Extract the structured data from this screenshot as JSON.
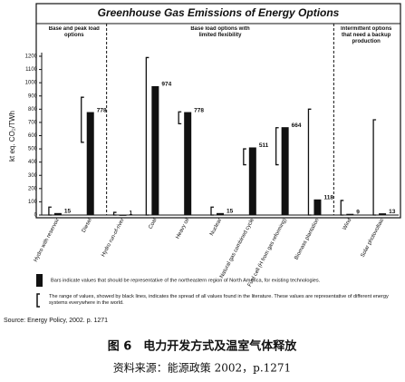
{
  "chart_data": {
    "type": "bar",
    "title": "Greenhouse Gas Emissions of Energy Options",
    "groups": [
      {
        "label": "Base and peak load options",
        "from": 0,
        "to": 1
      },
      {
        "label": "Base load options with limited flexibility",
        "from": 2,
        "to": 8
      },
      {
        "label": "Intermittent options that need a backup production",
        "from": 9,
        "to": 10
      }
    ],
    "y_label": "kt eq. CO₂/TWh",
    "categories": [
      "Hydro with reservoir",
      "Diesel",
      "Hydro run-of-river",
      "Coal",
      "Heavy oil",
      "Nuclear",
      "Natural gas combined cycle",
      "Fuel cell (H from gas reforming)",
      "Biomass plantation",
      "Wind",
      "Solar photovoltaic"
    ],
    "values": [
      15,
      778,
      1,
      974,
      778,
      15,
      511,
      664,
      118,
      9,
      13
    ],
    "ranges": [
      [
        0,
        60
      ],
      [
        550,
        890
      ],
      [
        0,
        20
      ],
      [
        0,
        1190
      ],
      [
        690,
        780
      ],
      [
        0,
        60
      ],
      [
        380,
        500
      ],
      [
        380,
        660
      ],
      [
        0,
        800
      ],
      [
        0,
        110
      ],
      [
        0,
        720
      ]
    ],
    "color": "#111111",
    "ylim": [
      0,
      1200
    ],
    "yticks": [
      0,
      100,
      200,
      300,
      400,
      500,
      600,
      700,
      800,
      900,
      1000,
      1100,
      1200
    ],
    "legend": {
      "bars": "Bars indicate values that should be representative of the northeastern region of North America, for existing technologies.",
      "ranges": "The range of values, showed by black lines, indicates the spread of all values found in the literature. These values are representative of different energy systems everywhere in the world."
    },
    "source": "Source: Energy Policy, 2002. p. 1271"
  },
  "caption": {
    "title": "图 6　电力开发方式及温室气体释放",
    "source": "资料来源：能源政策 2002，p.1271"
  }
}
